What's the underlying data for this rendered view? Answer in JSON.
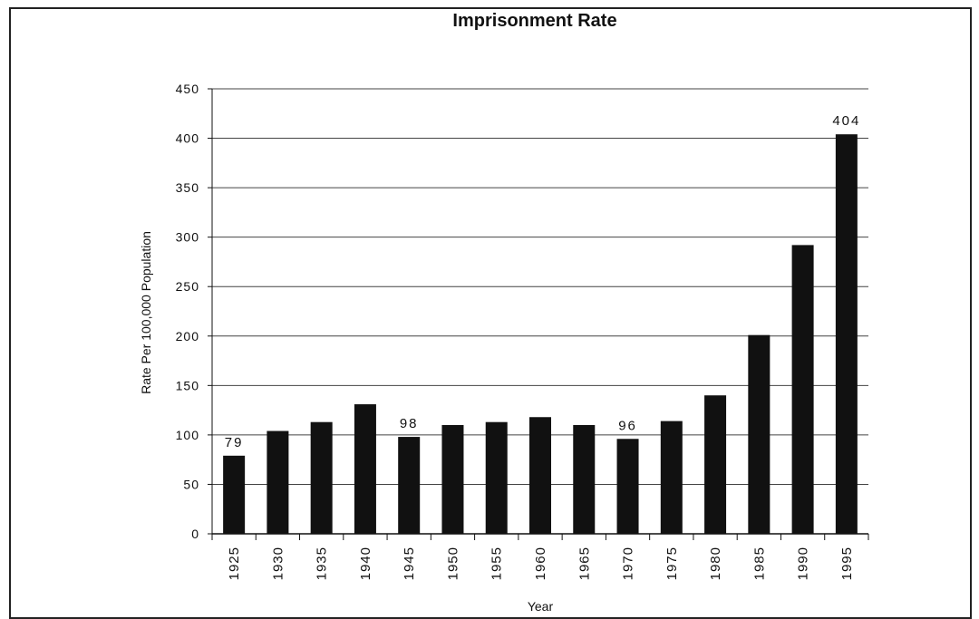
{
  "chart_data": {
    "type": "bar",
    "title": "Imprisonment Rate",
    "xlabel": "Year",
    "ylabel": "Rate Per 100,000 Population",
    "categories": [
      "1925",
      "1930",
      "1935",
      "1940",
      "1945",
      "1950",
      "1955",
      "1960",
      "1965",
      "1970",
      "1975",
      "1980",
      "1985",
      "1990",
      "1995"
    ],
    "values": [
      79,
      104,
      113,
      131,
      98,
      110,
      113,
      118,
      110,
      96,
      114,
      140,
      201,
      292,
      404
    ],
    "data_labels": {
      "1925": "79",
      "1945": "98",
      "1970": "96",
      "1995": "404"
    },
    "ylim": [
      0,
      450
    ],
    "yticks": [
      0,
      50,
      100,
      150,
      200,
      250,
      300,
      350,
      400,
      450
    ],
    "grid": true,
    "bar_color": "#111111"
  }
}
